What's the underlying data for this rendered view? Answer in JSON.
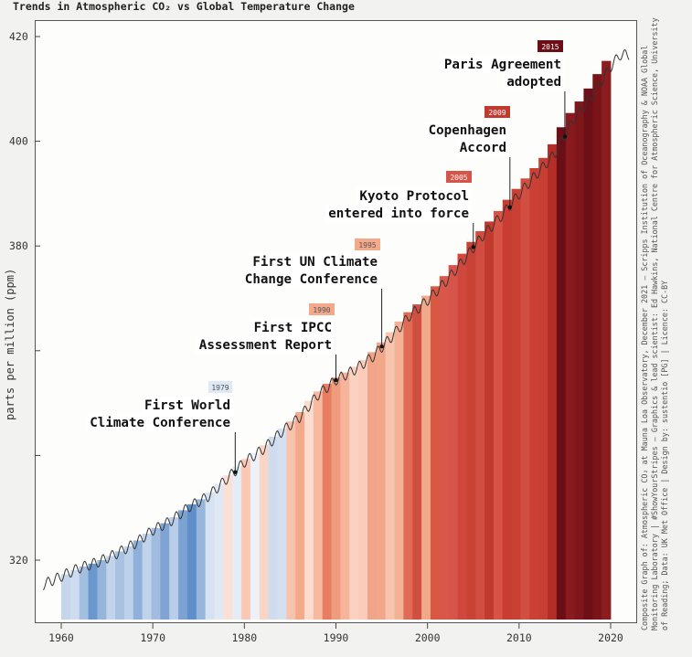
{
  "title": "Trends in Atmospheric CO₂ vs Global Temperature Change",
  "credit": "Composite Graph of: Atmospheric CO₂ at Mauna Loa Observatory, December 2021 – Scripps Institution of Oceanography & NOAA Global Monitoring Laboratory | #ShowYourStripes – Graphics & lead scientist: Ed Hawkins, National Centre for Atmospheric Science, University of Reading; Data: UK Met Office | Design by: sustentio [PG] | Licence: CC-BY",
  "chart_data": {
    "type": "line",
    "title": "Trends in Atmospheric CO₂ vs Global Temperature Change",
    "xlabel": "",
    "ylabel": "parts per million (ppm)",
    "xlim": [
      1958,
      2022
    ],
    "ylim": [
      310,
      421
    ],
    "x_ticks": [
      1960,
      1970,
      1980,
      1990,
      2000,
      2010,
      2020
    ],
    "y_ticks": [
      320,
      340,
      360,
      380,
      400,
      420
    ],
    "y_tick_labels": [
      "320",
      "",
      "",
      "380",
      "400",
      "420"
    ],
    "co2": [
      [
        1958,
        315.3
      ],
      [
        1960,
        316.9
      ],
      [
        1962,
        318.5
      ],
      [
        1964,
        319.6
      ],
      [
        1966,
        321.2
      ],
      [
        1968,
        323.1
      ],
      [
        1970,
        325.7
      ],
      [
        1972,
        327.5
      ],
      [
        1974,
        330.2
      ],
      [
        1976,
        332.1
      ],
      [
        1978,
        335.4
      ],
      [
        1980,
        338.7
      ],
      [
        1982,
        341.1
      ],
      [
        1984,
        344.4
      ],
      [
        1986,
        347.2
      ],
      [
        1988,
        351.5
      ],
      [
        1990,
        354.4
      ],
      [
        1992,
        356.3
      ],
      [
        1994,
        358.8
      ],
      [
        1996,
        362.5
      ],
      [
        1998,
        366.6
      ],
      [
        2000,
        369.6
      ],
      [
        2002,
        373.2
      ],
      [
        2004,
        377.4
      ],
      [
        2006,
        381.9
      ],
      [
        2008,
        385.6
      ],
      [
        2010,
        389.9
      ],
      [
        2012,
        393.9
      ],
      [
        2014,
        397.8
      ],
      [
        2016,
        404.3
      ],
      [
        2018,
        408.7
      ],
      [
        2020,
        414.2
      ],
      [
        2021,
        416.5
      ]
    ],
    "stripes": {
      "start_year": 1960,
      "end_year": 2020,
      "colors": [
        "#c5d6ec",
        "#cddcef",
        "#a3bfe0",
        "#6a97cd",
        "#96b5db",
        "#c2d4eb",
        "#a8c2e2",
        "#bdd1ea",
        "#8fb0d8",
        "#c1d3eb",
        "#a0bde0",
        "#7fa4d3",
        "#b9cde8",
        "#7ca2d2",
        "#5f8ecb",
        "#97b6dc",
        "#d6e1f1",
        "#dfe8f5",
        "#fbe0d6",
        "#e5ecf6",
        "#fac9b6",
        "#eef2f8",
        "#f9d5c6",
        "#cfdcee",
        "#d4e0f0",
        "#f7c3ad",
        "#f3a98a",
        "#fbdccf",
        "#f8b9a1",
        "#e87d61",
        "#ef9c7e",
        "#f6b49a",
        "#fad2c1",
        "#faccb9",
        "#f0a488",
        "#f3a78a",
        "#f9c4ae",
        "#f3b196",
        "#e06a54",
        "#d14f40",
        "#f1a98b",
        "#d85844",
        "#d8574a",
        "#d6544a",
        "#d0473d",
        "#c94236",
        "#d14c41",
        "#c13a2e",
        "#d65346",
        "#c83c32",
        "#cb4034",
        "#d34e42",
        "#ca4034",
        "#c73e33",
        "#b52d27",
        "#6b0e16",
        "#891a1e",
        "#7e161a",
        "#6d0f18",
        "#7a1418",
        "#8b1c1f"
      ]
    },
    "annotations": [
      {
        "year": 1979,
        "ppm": 336.8,
        "text_lines": [
          "First World",
          "Climate Conference"
        ],
        "badge": "1979",
        "badge_color": "#dfe8f5",
        "badge_text_color": "#555555"
      },
      {
        "year": 1990,
        "ppm": 354.4,
        "text_lines": [
          "First IPCC",
          "Assessment Report"
        ],
        "badge": "1990",
        "badge_color": "#f3a98a",
        "badge_text_color": "#555555"
      },
      {
        "year": 1995,
        "ppm": 360.8,
        "text_lines": [
          "First UN Climate",
          "Change Conference"
        ],
        "badge": "1995",
        "badge_color": "#f3a98a",
        "badge_text_color": "#555555"
      },
      {
        "year": 2005,
        "ppm": 379.8,
        "text_lines": [
          "Kyoto Protocol",
          "entered into force"
        ],
        "badge": "2005",
        "badge_color": "#d6544a",
        "badge_text_color": "#ffffff"
      },
      {
        "year": 2009,
        "ppm": 387.4,
        "text_lines": [
          "Copenhagen",
          "Accord"
        ],
        "badge": "2009",
        "badge_color": "#c13a2e",
        "badge_text_color": "#ffffff"
      },
      {
        "year": 2015,
        "ppm": 400.9,
        "text_lines": [
          "Paris Agreement",
          "adopted"
        ],
        "badge": "2015",
        "badge_color": "#6b0e16",
        "badge_text_color": "#ffffff"
      }
    ],
    "grid": false,
    "legend": "none"
  }
}
